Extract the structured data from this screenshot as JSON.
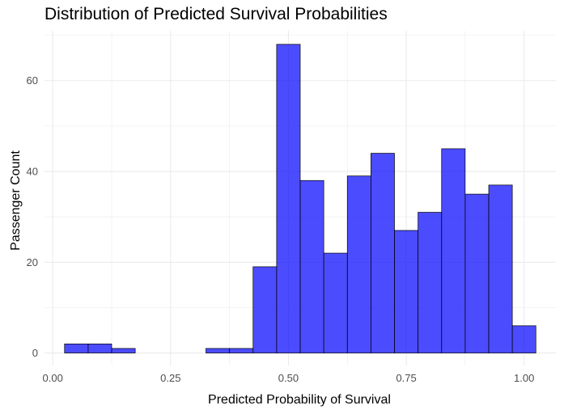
{
  "chart_data": {
    "type": "bar",
    "title": "Distribution of Predicted Survival Probabilities",
    "xlabel": "Predicted Probability of Survival",
    "ylabel": "Passenger Count",
    "xlim": [
      -0.0175,
      1.0675
    ],
    "ylim": [
      -2.75,
      71
    ],
    "x_ticks": [
      "0.00",
      "0.25",
      "0.50",
      "0.75",
      "1.00"
    ],
    "y_ticks": [
      "0",
      "20",
      "40",
      "60"
    ],
    "bin_width": 0.05,
    "bins": [
      {
        "x0": 0.025,
        "x1": 0.075,
        "count": 2
      },
      {
        "x0": 0.075,
        "x1": 0.125,
        "count": 2
      },
      {
        "x0": 0.125,
        "x1": 0.175,
        "count": 1
      },
      {
        "x0": 0.175,
        "x1": 0.225,
        "count": 0
      },
      {
        "x0": 0.225,
        "x1": 0.275,
        "count": 0
      },
      {
        "x0": 0.275,
        "x1": 0.325,
        "count": 0
      },
      {
        "x0": 0.325,
        "x1": 0.375,
        "count": 1
      },
      {
        "x0": 0.375,
        "x1": 0.425,
        "count": 1
      },
      {
        "x0": 0.425,
        "x1": 0.475,
        "count": 19
      },
      {
        "x0": 0.475,
        "x1": 0.525,
        "count": 68
      },
      {
        "x0": 0.525,
        "x1": 0.575,
        "count": 38
      },
      {
        "x0": 0.575,
        "x1": 0.625,
        "count": 22
      },
      {
        "x0": 0.625,
        "x1": 0.675,
        "count": 39
      },
      {
        "x0": 0.675,
        "x1": 0.725,
        "count": 44
      },
      {
        "x0": 0.725,
        "x1": 0.775,
        "count": 27
      },
      {
        "x0": 0.775,
        "x1": 0.825,
        "count": 31
      },
      {
        "x0": 0.825,
        "x1": 0.875,
        "count": 45
      },
      {
        "x0": 0.875,
        "x1": 0.925,
        "count": 35
      },
      {
        "x0": 0.925,
        "x1": 0.975,
        "count": 37
      },
      {
        "x0": 0.975,
        "x1": 1.025,
        "count": 6
      }
    ],
    "bar_color": "#0000ff",
    "bar_opacity": 0.7,
    "bar_outline": "#000000",
    "grid": true,
    "grid_color": "#ebebeb",
    "legend": "none"
  }
}
